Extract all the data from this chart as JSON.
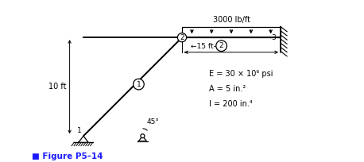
{
  "bg_color": "#ffffff",
  "line_color": "#000000",
  "text_color": "#000000",
  "title_color": "#1a1aff",
  "load_label": "3000 lb/ft",
  "E_label": "E = 30 × 10⁶ psi",
  "A_label": "A = 5 in.²",
  "I_label": "I = 200 in.⁴",
  "dim_label": "15 ft",
  "height_label": "10 ft",
  "angle_label": "45°",
  "title": "Figure P5–14",
  "n1": [
    1.1,
    0.0
  ],
  "n2": [
    3.1,
    2.0
  ],
  "n3": [
    5.1,
    2.0
  ],
  "nleft": [
    1.1,
    2.0
  ],
  "n_roller": [
    2.3,
    0.0
  ],
  "load_height": 0.22,
  "num_load_arrows": 5,
  "xlim": [
    0.0,
    6.2
  ],
  "ylim": [
    -0.42,
    2.75
  ]
}
